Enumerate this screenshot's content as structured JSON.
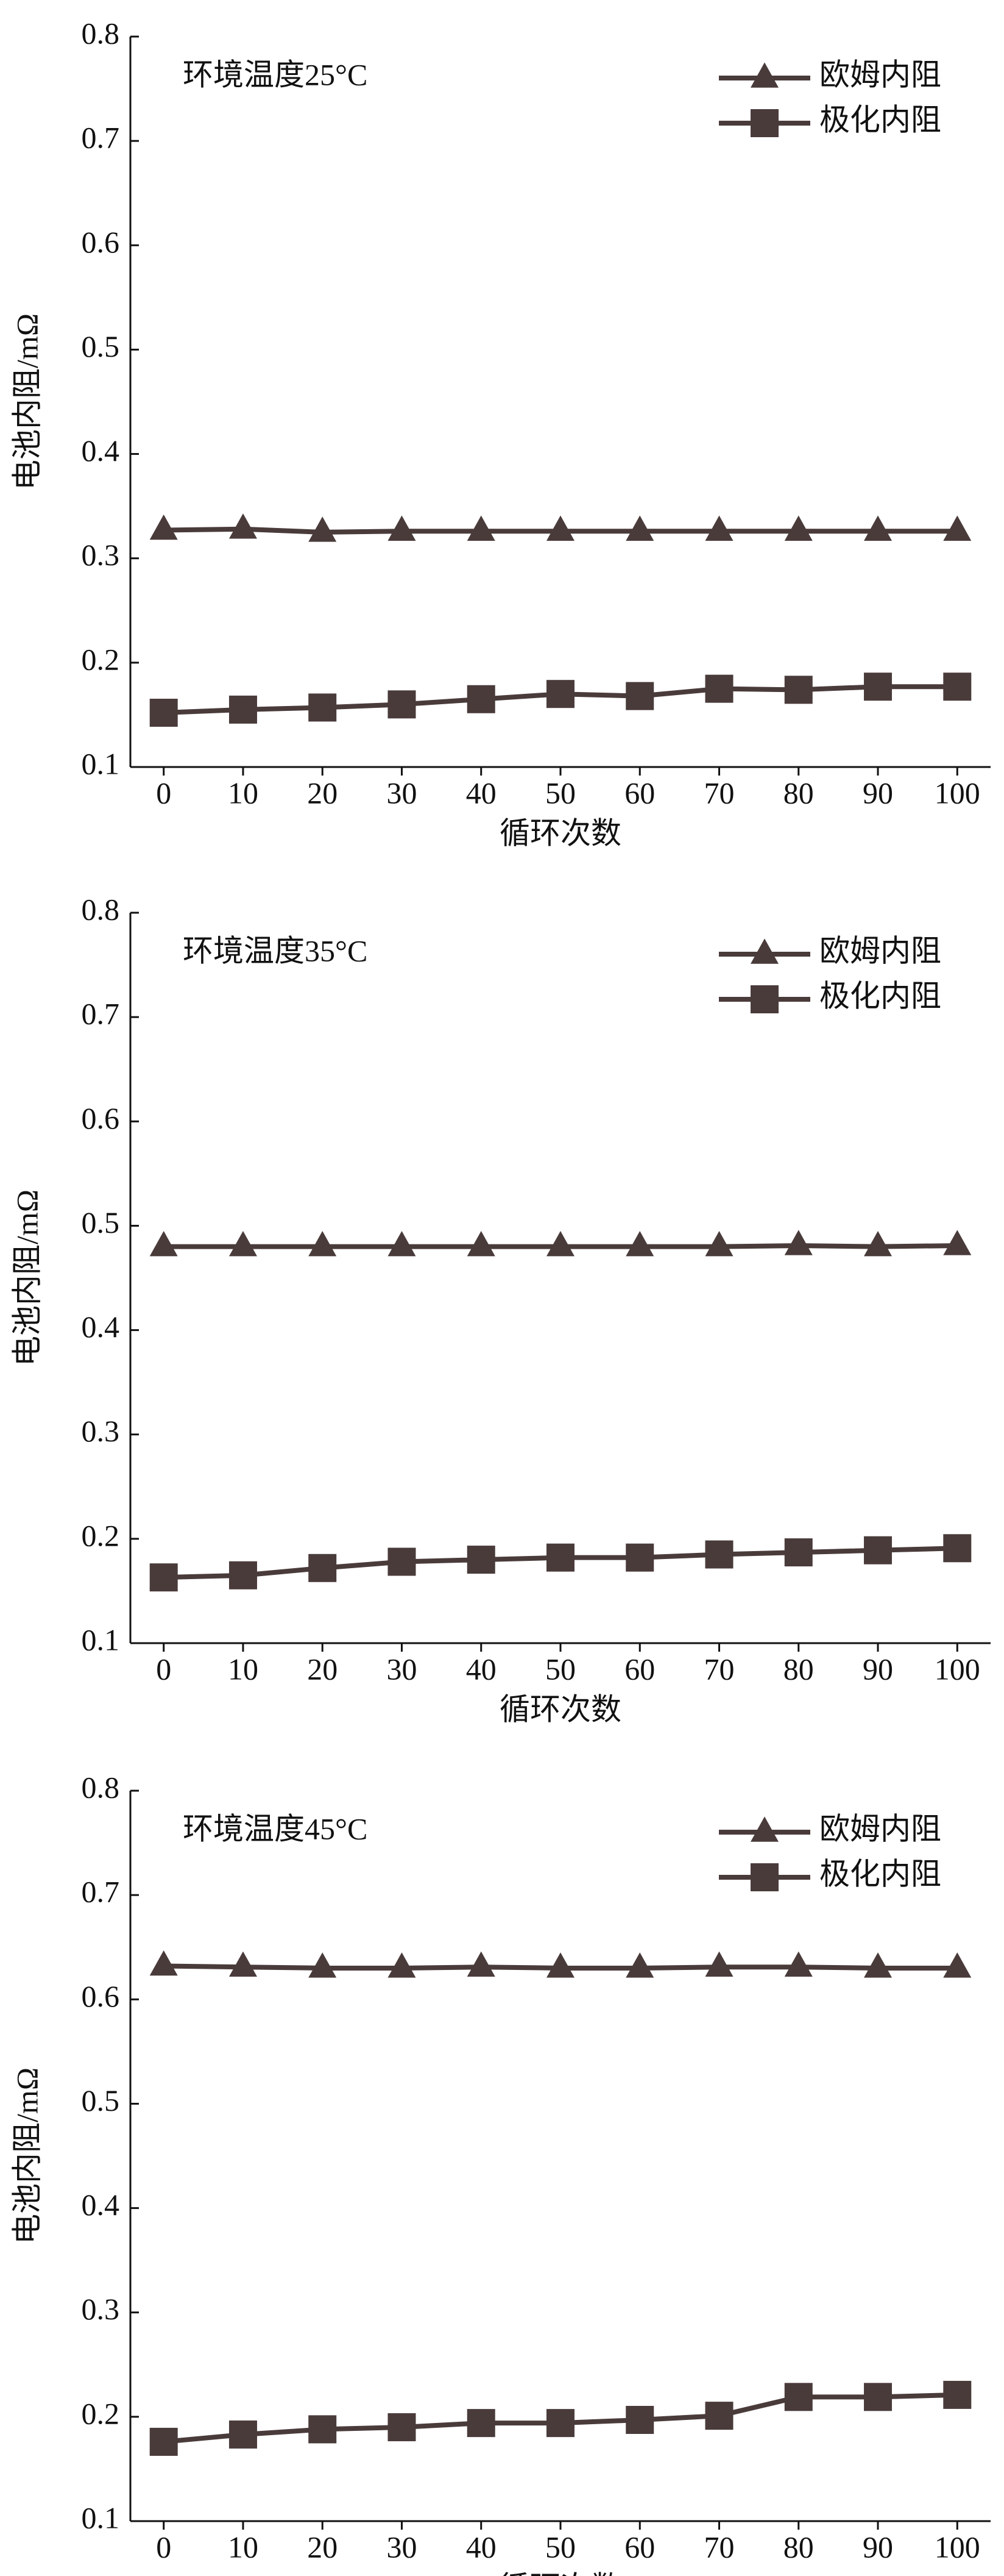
{
  "chart_data": [
    {
      "type": "line",
      "annotation": "环境温度25°C",
      "x_label": "循环次数",
      "y_label": "电池内阻/mΩ",
      "x": [
        0,
        10,
        20,
        30,
        40,
        50,
        60,
        70,
        80,
        90,
        100
      ],
      "xlim": [
        -4.2,
        104.2
      ],
      "xticks": [
        0,
        10,
        20,
        30,
        40,
        50,
        60,
        70,
        80,
        90,
        100
      ],
      "ylim": [
        0.1,
        0.8
      ],
      "yticks": [
        0.1,
        0.2,
        0.3,
        0.4,
        0.5,
        0.6,
        0.7,
        0.8
      ],
      "legend": "upper right",
      "series": [
        {
          "name": "欧姆内阻",
          "color": "#4a3b3b",
          "marker": "triangle",
          "values": [
            0.327,
            0.328,
            0.325,
            0.326,
            0.326,
            0.326,
            0.326,
            0.326,
            0.326,
            0.326,
            0.326
          ]
        },
        {
          "name": "极化内阻",
          "color": "#4a3b3b",
          "marker": "square",
          "values": [
            0.152,
            0.155,
            0.157,
            0.16,
            0.165,
            0.17,
            0.168,
            0.175,
            0.174,
            0.177,
            0.177
          ]
        }
      ]
    },
    {
      "type": "line",
      "annotation": "环境温度35°C",
      "x_label": "循环次数",
      "y_label": "电池内阻/mΩ",
      "x": [
        0,
        10,
        20,
        30,
        40,
        50,
        60,
        70,
        80,
        90,
        100
      ],
      "xlim": [
        -4.2,
        104.2
      ],
      "xticks": [
        0,
        10,
        20,
        30,
        40,
        50,
        60,
        70,
        80,
        90,
        100
      ],
      "ylim": [
        0.1,
        0.8
      ],
      "yticks": [
        0.1,
        0.2,
        0.3,
        0.4,
        0.5,
        0.6,
        0.7,
        0.8
      ],
      "legend": "upper right",
      "series": [
        {
          "name": "欧姆内阻",
          "color": "#4a3b3b",
          "marker": "triangle",
          "values": [
            0.48,
            0.48,
            0.48,
            0.48,
            0.48,
            0.48,
            0.48,
            0.48,
            0.481,
            0.48,
            0.481
          ]
        },
        {
          "name": "极化内阻",
          "color": "#4a3b3b",
          "marker": "square",
          "values": [
            0.163,
            0.165,
            0.172,
            0.178,
            0.18,
            0.182,
            0.182,
            0.185,
            0.187,
            0.189,
            0.191
          ]
        }
      ]
    },
    {
      "type": "line",
      "annotation": "环境温度45°C",
      "x_label": "循环次数",
      "y_label": "电池内阻/mΩ",
      "x": [
        0,
        10,
        20,
        30,
        40,
        50,
        60,
        70,
        80,
        90,
        100
      ],
      "xlim": [
        -4.2,
        104.2
      ],
      "xticks": [
        0,
        10,
        20,
        30,
        40,
        50,
        60,
        70,
        80,
        90,
        100
      ],
      "ylim": [
        0.1,
        0.8
      ],
      "yticks": [
        0.1,
        0.2,
        0.3,
        0.4,
        0.5,
        0.6,
        0.7,
        0.8
      ],
      "legend": "upper right",
      "series": [
        {
          "name": "欧姆内阻",
          "color": "#4a3b3b",
          "marker": "triangle",
          "values": [
            0.632,
            0.631,
            0.63,
            0.63,
            0.631,
            0.63,
            0.63,
            0.631,
            0.631,
            0.63,
            0.63
          ]
        },
        {
          "name": "极化内阻",
          "color": "#4a3b3b",
          "marker": "square",
          "values": [
            0.176,
            0.183,
            0.188,
            0.19,
            0.194,
            0.194,
            0.197,
            0.201,
            0.219,
            0.219,
            0.221
          ]
        }
      ]
    }
  ]
}
